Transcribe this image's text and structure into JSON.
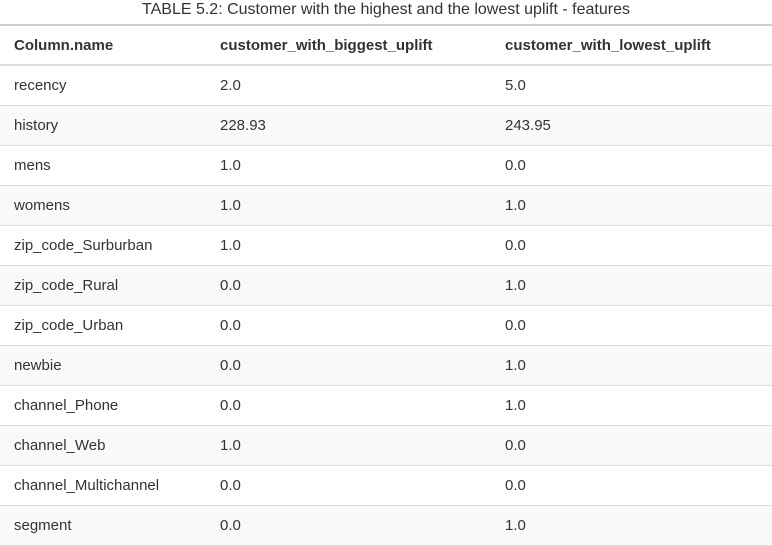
{
  "caption": "TABLE 5.2: Customer with the highest and the lowest uplift - features",
  "headers": [
    "Column.name",
    "customer_with_biggest_uplift",
    "customer_with_lowest_uplift"
  ],
  "rows": [
    [
      "recency",
      "2.0",
      "5.0"
    ],
    [
      "history",
      "228.93",
      "243.95"
    ],
    [
      "mens",
      "1.0",
      "0.0"
    ],
    [
      "womens",
      "1.0",
      "1.0"
    ],
    [
      "zip_code_Surburban",
      "1.0",
      "0.0"
    ],
    [
      "zip_code_Rural",
      "0.0",
      "1.0"
    ],
    [
      "zip_code_Urban",
      "0.0",
      "0.0"
    ],
    [
      "newbie",
      "0.0",
      "1.0"
    ],
    [
      "channel_Phone",
      "0.0",
      "1.0"
    ],
    [
      "channel_Web",
      "1.0",
      "0.0"
    ],
    [
      "channel_Multichannel",
      "0.0",
      "0.0"
    ],
    [
      "segment",
      "0.0",
      "1.0"
    ]
  ]
}
